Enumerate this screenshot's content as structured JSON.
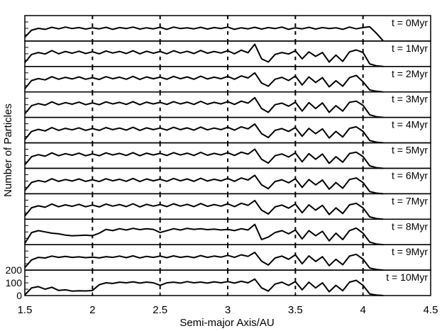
{
  "chart_data": {
    "type": "line",
    "xlabel": "Semi-major Axis/AU",
    "ylabel": "Number of Particles",
    "xlim": [
      1.5,
      4.5
    ],
    "ylim": [
      0,
      200
    ],
    "xticks": [
      "1.5",
      "2",
      "2.5",
      "3",
      "3.5",
      "4",
      "4.5"
    ],
    "yticks": [
      "200",
      "100",
      "0"
    ],
    "vlines": [
      2.0,
      2.5,
      3.0,
      3.5,
      4.0
    ],
    "x": [
      1.5,
      1.55,
      1.6,
      1.65,
      1.7,
      1.75,
      1.8,
      1.85,
      1.9,
      1.95,
      2.0,
      2.05,
      2.1,
      2.15,
      2.2,
      2.25,
      2.3,
      2.35,
      2.4,
      2.45,
      2.5,
      2.55,
      2.6,
      2.65,
      2.7,
      2.75,
      2.8,
      2.85,
      2.9,
      2.95,
      3.0,
      3.05,
      3.1,
      3.15,
      3.2,
      3.25,
      3.3,
      3.35,
      3.4,
      3.45,
      3.5,
      3.55,
      3.6,
      3.65,
      3.7,
      3.75,
      3.8,
      3.85,
      3.9,
      3.95,
      4.0,
      4.05,
      4.1,
      4.15
    ],
    "series": [
      {
        "label": "t = 0Myr",
        "values": [
          30,
          85,
          100,
          92,
          108,
          96,
          110,
          98,
          106,
          94,
          104,
          96,
          108,
          92,
          106,
          98,
          110,
          94,
          104,
          96,
          108,
          92,
          110,
          98,
          104,
          96,
          108,
          94,
          106,
          98,
          110,
          92,
          104,
          96,
          108,
          94,
          106,
          98,
          110,
          92,
          104,
          96,
          108,
          94,
          106,
          98,
          104,
          92,
          110,
          96,
          106,
          112,
          60,
          0
        ]
      },
      {
        "label": "t = 1Myr",
        "values": [
          30,
          95,
          110,
          98,
          125,
          100,
          118,
          104,
          120,
          102,
          116,
          100,
          122,
          106,
          118,
          102,
          124,
          100,
          120,
          104,
          118,
          100,
          124,
          106,
          120,
          102,
          126,
          104,
          118,
          106,
          124,
          100,
          128,
          108,
          175,
          60,
          35,
          95,
          110,
          98,
          124,
          60,
          115,
          80,
          110,
          35,
          90,
          40,
          115,
          130,
          110,
          20,
          5,
          0
        ]
      },
      {
        "label": "t = 2Myr",
        "values": [
          25,
          90,
          105,
          95,
          120,
          100,
          115,
          102,
          118,
          100,
          112,
          98,
          120,
          104,
          116,
          100,
          122,
          98,
          118,
          104,
          116,
          100,
          122,
          104,
          118,
          100,
          124,
          102,
          116,
          104,
          122,
          100,
          126,
          110,
          150,
          70,
          45,
          100,
          115,
          90,
          125,
          55,
          118,
          75,
          112,
          40,
          88,
          45,
          112,
          130,
          80,
          15,
          5,
          0
        ]
      },
      {
        "label": "t = 3Myr",
        "values": [
          28,
          92,
          108,
          96,
          122,
          100,
          116,
          104,
          120,
          100,
          114,
          100,
          122,
          106,
          118,
          102,
          124,
          100,
          120,
          106,
          118,
          102,
          124,
          106,
          120,
          102,
          126,
          104,
          118,
          106,
          124,
          102,
          128,
          112,
          155,
          70,
          40,
          100,
          112,
          88,
          120,
          50,
          116,
          70,
          114,
          40,
          92,
          50,
          118,
          128,
          95,
          20,
          5,
          0
        ]
      },
      {
        "label": "t = 4Myr",
        "values": [
          26,
          90,
          106,
          94,
          120,
          98,
          114,
          102,
          118,
          98,
          112,
          98,
          120,
          104,
          116,
          100,
          122,
          98,
          118,
          104,
          116,
          100,
          122,
          104,
          118,
          100,
          124,
          102,
          116,
          104,
          122,
          100,
          126,
          110,
          148,
          72,
          42,
          98,
          112,
          90,
          120,
          52,
          114,
          72,
          110,
          38,
          90,
          46,
          114,
          126,
          90,
          18,
          5,
          0
        ]
      },
      {
        "label": "t = 5Myr",
        "values": [
          27,
          91,
          107,
          95,
          121,
          99,
          115,
          103,
          119,
          99,
          113,
          99,
          121,
          105,
          117,
          101,
          123,
          99,
          119,
          105,
          117,
          101,
          123,
          105,
          119,
          101,
          125,
          103,
          117,
          105,
          123,
          101,
          127,
          111,
          150,
          71,
          41,
          99,
          113,
          89,
          121,
          51,
          115,
          71,
          112,
          39,
          91,
          48,
          116,
          127,
          92,
          19,
          5,
          0
        ]
      },
      {
        "label": "t = 6Myr",
        "values": [
          25,
          89,
          104,
          93,
          118,
          97,
          112,
          100,
          116,
          97,
          110,
          96,
          118,
          102,
          114,
          98,
          120,
          96,
          116,
          102,
          114,
          98,
          120,
          102,
          116,
          98,
          122,
          100,
          114,
          102,
          120,
          98,
          124,
          108,
          145,
          70,
          40,
          96,
          110,
          86,
          118,
          50,
          112,
          70,
          108,
          36,
          88,
          44,
          112,
          124,
          88,
          17,
          5,
          0
        ]
      },
      {
        "label": "t = 7Myr",
        "values": [
          26,
          90,
          105,
          94,
          119,
          98,
          113,
          101,
          117,
          98,
          111,
          97,
          119,
          103,
          115,
          99,
          121,
          97,
          117,
          103,
          115,
          99,
          121,
          103,
          117,
          99,
          123,
          101,
          115,
          103,
          121,
          99,
          125,
          109,
          147,
          71,
          41,
          97,
          111,
          87,
          119,
          51,
          113,
          71,
          109,
          37,
          89,
          45,
          113,
          125,
          89,
          18,
          5,
          0
        ]
      },
      {
        "label": "t = 8Myr",
        "values": [
          10,
          95,
          110,
          100,
          90,
          85,
          75,
          70,
          72,
          75,
          70,
          90,
          120,
          110,
          125,
          115,
          128,
          118,
          125,
          120,
          95,
          110,
          125,
          115,
          128,
          120,
          125,
          118,
          122,
          115,
          120,
          110,
          125,
          115,
          160,
          40,
          60,
          95,
          110,
          85,
          115,
          45,
          110,
          70,
          105,
          30,
          90,
          40,
          110,
          130,
          90,
          20,
          5,
          0
        ]
      },
      {
        "label": "t = 9Myr",
        "values": [
          20,
          80,
          100,
          95,
          110,
          100,
          108,
          100,
          104,
          98,
          102,
          96,
          106,
          100,
          110,
          98,
          112,
          96,
          108,
          100,
          110,
          98,
          112,
          100,
          108,
          98,
          114,
          100,
          110,
          102,
          116,
          100,
          120,
          108,
          140,
          70,
          40,
          95,
          110,
          85,
          120,
          50,
          112,
          68,
          105,
          35,
          85,
          42,
          110,
          124,
          86,
          16,
          5,
          0
        ]
      },
      {
        "label": "t = 10Myr",
        "values": [
          5,
          60,
          70,
          50,
          65,
          40,
          45,
          35,
          38,
          36,
          40,
          85,
          100,
          95,
          105,
          100,
          108,
          98,
          106,
          100,
          80,
          100,
          105,
          98,
          110,
          100,
          106,
          98,
          108,
          100,
          110,
          98,
          112,
          100,
          130,
          60,
          35,
          90,
          105,
          80,
          110,
          45,
          105,
          60,
          100,
          30,
          80,
          38,
          105,
          120,
          80,
          12,
          4,
          0
        ]
      }
    ]
  }
}
